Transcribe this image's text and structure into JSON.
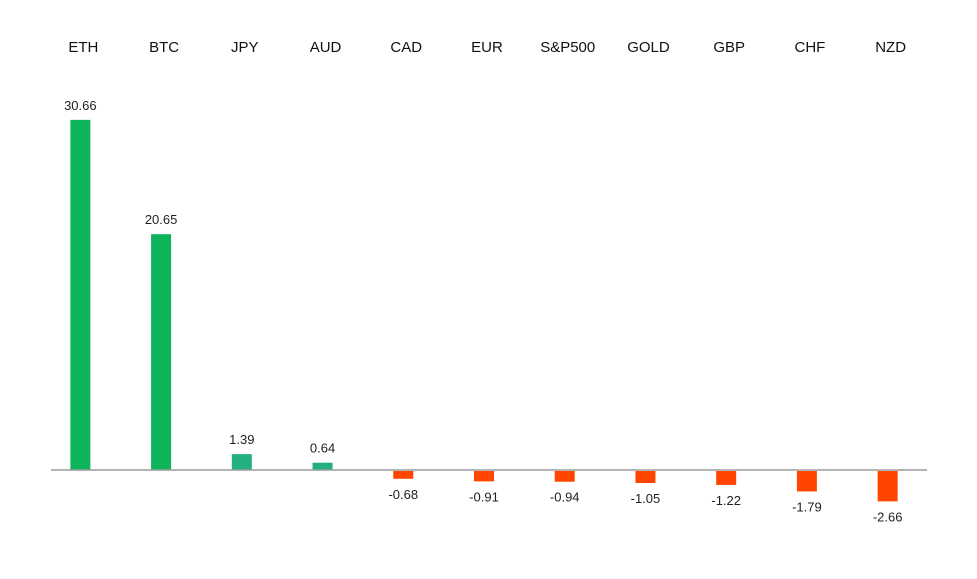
{
  "chart_data": {
    "type": "bar",
    "categories": [
      "ETH",
      "BTC",
      "JPY",
      "AUD",
      "CAD",
      "EUR",
      "S&P500",
      "GOLD",
      "GBP",
      "CHF",
      "NZD"
    ],
    "values": [
      30.66,
      20.65,
      1.39,
      0.64,
      -0.68,
      -0.91,
      -0.94,
      -1.05,
      -1.22,
      -1.79,
      -2.66
    ],
    "title": "",
    "xlabel": "",
    "ylabel": "",
    "ylim": [
      -3,
      32
    ],
    "grid": false,
    "legend": "none",
    "category_label_position": "top",
    "data_labels": true,
    "colors": {
      "strong_positive": "#0db45a",
      "mild_positive": "#23b07f",
      "negative": "#ff4500",
      "axis": "#9c9c9c"
    }
  }
}
